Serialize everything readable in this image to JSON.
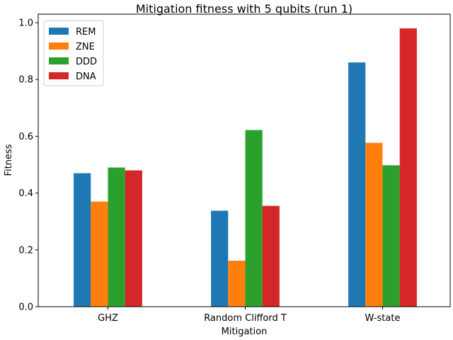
{
  "chart_data": {
    "type": "bar",
    "title": "Mitigation fitness with 5 qubits (run 1)",
    "xlabel": "Mitigation",
    "ylabel": "Fitness",
    "categories": [
      "GHZ",
      "Random Clifford T",
      "W-state"
    ],
    "series": [
      {
        "name": "REM",
        "color": "#1f77b4",
        "values": [
          0.47,
          0.338,
          0.86
        ]
      },
      {
        "name": "ZNE",
        "color": "#ff7f0e",
        "values": [
          0.37,
          0.162,
          0.577
        ]
      },
      {
        "name": "DDD",
        "color": "#2ca02c",
        "values": [
          0.49,
          0.622,
          0.498
        ]
      },
      {
        "name": "DNA",
        "color": "#d62728",
        "values": [
          0.48,
          0.355,
          0.98
        ]
      }
    ],
    "ylim": [
      0,
      1.03
    ],
    "yticks": [
      "0.0",
      "0.2",
      "0.4",
      "0.6",
      "0.8",
      "1.0"
    ],
    "grid": false,
    "legend_position": "top-left"
  }
}
